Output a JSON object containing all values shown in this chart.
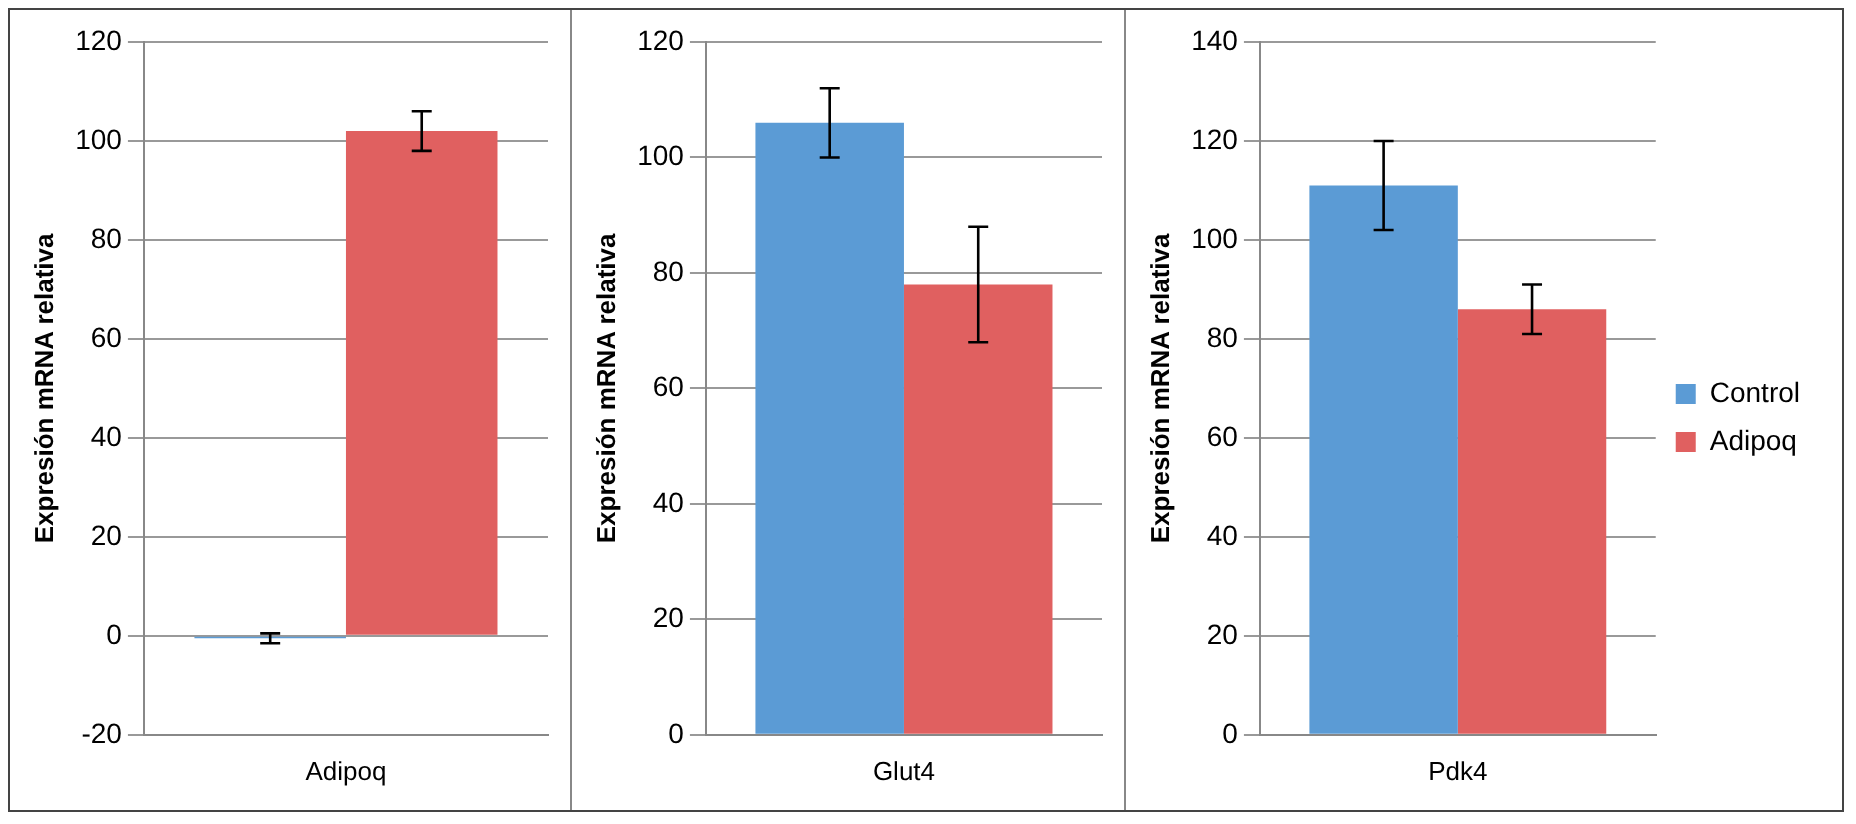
{
  "chart_data": [
    {
      "type": "bar",
      "categories": [
        "Adipoq"
      ],
      "ylabel": "Expresión mRNA relativa",
      "ylim": [
        -20,
        120
      ],
      "yticks": [
        -20,
        0,
        20,
        40,
        60,
        80,
        100,
        120
      ],
      "grid": "y",
      "legend": false,
      "series": [
        {
          "color": "#5b9bd5",
          "values": [
            -0.5
          ],
          "errors": [
            1
          ]
        },
        {
          "color": "#e06060",
          "values": [
            102
          ],
          "errors": [
            4
          ]
        }
      ]
    },
    {
      "type": "bar",
      "categories": [
        "Glut4"
      ],
      "ylabel": "Expresión mRNA relativa",
      "ylim": [
        0,
        120
      ],
      "yticks": [
        0,
        20,
        40,
        60,
        80,
        100,
        120
      ],
      "grid": "y",
      "legend": false,
      "series": [
        {
          "color": "#5b9bd5",
          "values": [
            106
          ],
          "errors": [
            6
          ]
        },
        {
          "color": "#e06060",
          "values": [
            78
          ],
          "errors": [
            10
          ]
        }
      ]
    },
    {
      "type": "bar",
      "categories": [
        "Pdk4"
      ],
      "ylabel": "Expresión mRNA relativa",
      "ylim": [
        0,
        140
      ],
      "yticks": [
        0,
        20,
        40,
        60,
        80,
        100,
        120,
        140
      ],
      "grid": "y",
      "legend": "right",
      "series": [
        {
          "name": "Control",
          "color": "#5b9bd5",
          "values": [
            111
          ],
          "errors": [
            9
          ]
        },
        {
          "name": "Adipoq",
          "color": "#e06060",
          "values": [
            86
          ],
          "errors": [
            5
          ]
        }
      ]
    }
  ]
}
